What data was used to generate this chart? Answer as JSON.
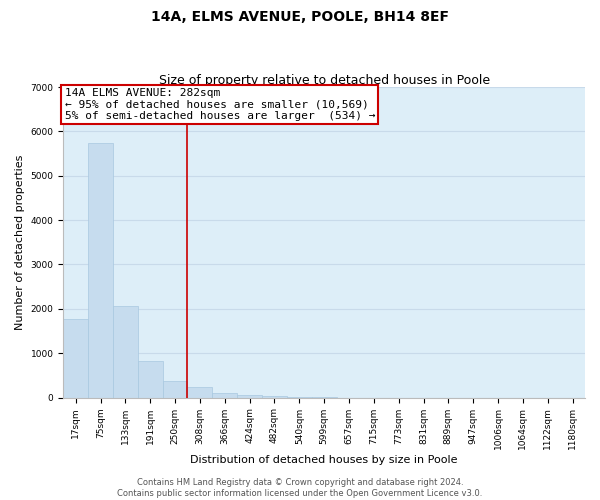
{
  "title": "14A, ELMS AVENUE, POOLE, BH14 8EF",
  "subtitle": "Size of property relative to detached houses in Poole",
  "xlabel": "Distribution of detached houses by size in Poole",
  "ylabel": "Number of detached properties",
  "bar_labels": [
    "17sqm",
    "75sqm",
    "133sqm",
    "191sqm",
    "250sqm",
    "308sqm",
    "366sqm",
    "424sqm",
    "482sqm",
    "540sqm",
    "599sqm",
    "657sqm",
    "715sqm",
    "773sqm",
    "831sqm",
    "889sqm",
    "947sqm",
    "1006sqm",
    "1064sqm",
    "1122sqm",
    "1180sqm"
  ],
  "bar_values": [
    1780,
    5740,
    2060,
    830,
    370,
    230,
    110,
    60,
    30,
    10,
    5,
    0,
    0,
    0,
    0,
    0,
    0,
    0,
    0,
    0,
    0
  ],
  "bar_color": "#c6dcee",
  "bar_edge_color": "#a8c8e0",
  "vline_x_idx": 4.5,
  "vline_color": "#cc0000",
  "vline_linewidth": 1.2,
  "annotation_title": "14A ELMS AVENUE: 282sqm",
  "annotation_line1": "← 95% of detached houses are smaller (10,569)",
  "annotation_line2": "5% of semi-detached houses are larger  (534) →",
  "annotation_box_color": "white",
  "annotation_box_edge": "#cc0000",
  "ylim": [
    0,
    7000
  ],
  "yticks": [
    0,
    1000,
    2000,
    3000,
    4000,
    5000,
    6000,
    7000
  ],
  "grid_color": "#c8daea",
  "background_color": "#ddeef8",
  "footer_line1": "Contains HM Land Registry data © Crown copyright and database right 2024.",
  "footer_line2": "Contains public sector information licensed under the Open Government Licence v3.0.",
  "title_fontsize": 10,
  "subtitle_fontsize": 9,
  "axis_label_fontsize": 8,
  "tick_fontsize": 6.5,
  "annotation_title_fontsize": 8,
  "annotation_body_fontsize": 8,
  "footer_fontsize": 6
}
